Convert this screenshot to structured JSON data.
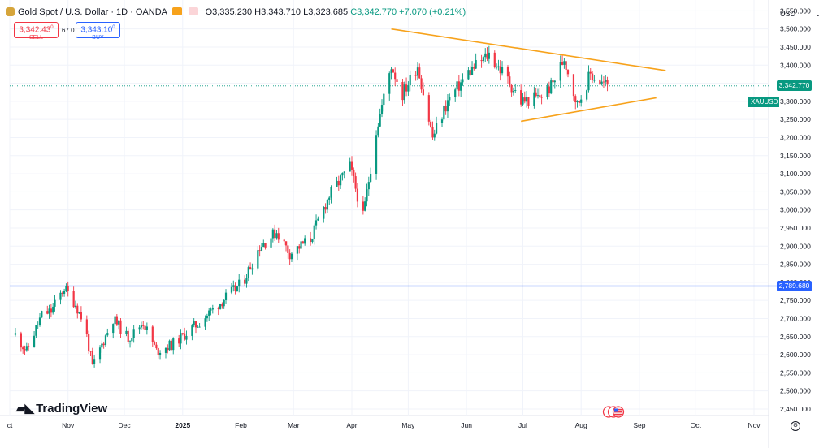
{
  "header": {
    "symbol": "Gold Spot / U.S. Dollar · 1D · OANDA",
    "open": "O3,335.230",
    "high": "H3,343.710",
    "low": "L3,323.685",
    "close": "C3,342.770",
    "change": "+7.070 (+0.21%)"
  },
  "trade": {
    "sell_price": "3,342.43",
    "sell_sup": "0",
    "sell_label": "SELL",
    "spread": "67.0",
    "buy_price": "3,343.10",
    "buy_sup": "0",
    "buy_label": "BUY"
  },
  "axis_currency": "USD",
  "brand": "TradingView",
  "ticker_tag": "XAUUSD",
  "last_price_tag": "3,342.770",
  "level_price_tag": "2,789.680",
  "colors": {
    "up": "#089981",
    "down": "#f23645",
    "trendline": "#f7a21b",
    "level": "#2962ff",
    "grid": "#f0f3fa"
  },
  "chart_data": {
    "type": "candlestick",
    "y_ticks": [
      2450,
      2500,
      2550,
      2600,
      2650,
      2700,
      2750,
      2800,
      2850,
      2900,
      2950,
      3000,
      3050,
      3100,
      3150,
      3200,
      3250,
      3300,
      3350,
      3400,
      3450,
      3500,
      3550
    ],
    "y_tick_labels": [
      "2,450.000",
      "2,500.000",
      "2,550.000",
      "2,600.000",
      "2,650.000",
      "2,700.000",
      "2,750.000",
      "2,800.000",
      "2,850.000",
      "2,900.000",
      "2,950.000",
      "3,000.000",
      "3,050.000",
      "3,100.000",
      "3,150.000",
      "3,200.000",
      "3,250.000",
      "3,300.000",
      "3,350.000",
      "3,400.000",
      "3,450.000",
      "3,500.000",
      "3,550.000"
    ],
    "ylim": [
      2432,
      3580
    ],
    "x_labels": [
      {
        "label": "ct",
        "date": "2024-10-01"
      },
      {
        "label": "Nov",
        "date": "2024-11-01"
      },
      {
        "label": "Dec",
        "date": "2024-12-01"
      },
      {
        "label": "2025",
        "date": "2025-01-01"
      },
      {
        "label": "Feb",
        "date": "2025-02-01"
      },
      {
        "label": "Mar",
        "date": "2025-03-01"
      },
      {
        "label": "Apr",
        "date": "2025-04-01"
      },
      {
        "label": "May",
        "date": "2025-05-01"
      },
      {
        "label": "Jun",
        "date": "2025-06-01"
      },
      {
        "label": "Jul",
        "date": "2025-07-01"
      },
      {
        "label": "Aug",
        "date": "2025-08-01"
      },
      {
        "label": "Sep",
        "date": "2025-09-01"
      },
      {
        "label": "Oct",
        "date": "2025-10-01"
      },
      {
        "label": "Nov",
        "date": "2025-11-01"
      }
    ],
    "anchors": [
      [
        "2024-10-04",
        2655
      ],
      [
        "2024-10-10",
        2610
      ],
      [
        "2024-10-18",
        2710
      ],
      [
        "2024-10-23",
        2720
      ],
      [
        "2024-10-30",
        2785
      ],
      [
        "2024-11-05",
        2740
      ],
      [
        "2024-11-10",
        2680
      ],
      [
        "2024-11-14",
        2565
      ],
      [
        "2024-11-20",
        2640
      ],
      [
        "2024-11-25",
        2700
      ],
      [
        "2024-12-03",
        2645
      ],
      [
        "2024-12-11",
        2690
      ],
      [
        "2024-12-18",
        2610
      ],
      [
        "2024-12-27",
        2630
      ],
      [
        "2025-01-10",
        2690
      ],
      [
        "2025-01-20",
        2740
      ],
      [
        "2025-02-02",
        2800
      ],
      [
        "2025-02-11",
        2900
      ],
      [
        "2025-02-20",
        2940
      ],
      [
        "2025-02-27",
        2880
      ],
      [
        "2025-03-10",
        2920
      ],
      [
        "2025-03-20",
        3040
      ],
      [
        "2025-03-31",
        3120
      ],
      [
        "2025-04-07",
        2980
      ],
      [
        "2025-04-14",
        3220
      ],
      [
        "2025-04-22",
        3400
      ],
      [
        "2025-04-28",
        3320
      ],
      [
        "2025-05-06",
        3400
      ],
      [
        "2025-05-14",
        3200
      ],
      [
        "2025-05-22",
        3300
      ],
      [
        "2025-06-02",
        3380
      ],
      [
        "2025-06-13",
        3430
      ],
      [
        "2025-06-23",
        3360
      ],
      [
        "2025-06-30",
        3300
      ],
      [
        "2025-07-09",
        3310
      ],
      [
        "2025-07-16",
        3340
      ],
      [
        "2025-07-23",
        3420
      ],
      [
        "2025-07-30",
        3290
      ],
      [
        "2025-08-06",
        3375
      ],
      [
        "2025-08-12",
        3350
      ],
      [
        "2025-08-18",
        3342
      ]
    ],
    "trendlines": [
      {
        "name": "resistance",
        "start": [
          "2025-04-22",
          3500
        ],
        "end": [
          "2025-09-15",
          3385
        ]
      },
      {
        "name": "support",
        "start": [
          "2025-06-30",
          3245
        ],
        "end": [
          "2025-09-10",
          3310
        ]
      }
    ],
    "horizontal_level": 2789.68,
    "last_close": 3342.77
  }
}
